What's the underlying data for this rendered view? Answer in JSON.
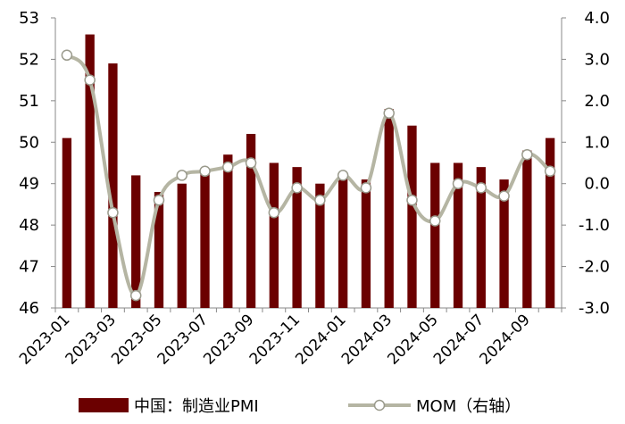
{
  "chart_data": {
    "type": "bar+line",
    "title": "",
    "xlabel": "",
    "x_tick_labels": [
      "2023-01",
      "2023-03",
      "2023-05",
      "2023-07",
      "2023-09",
      "2023-11",
      "2024-01",
      "2024-03",
      "2024-05",
      "2024-07",
      "2024-09"
    ],
    "categories": [
      "2023-01",
      "2023-02",
      "2023-03",
      "2023-04",
      "2023-05",
      "2023-06",
      "2023-07",
      "2023-08",
      "2023-09",
      "2023-10",
      "2023-11",
      "2023-12",
      "2024-01",
      "2024-02",
      "2024-03",
      "2024-04",
      "2024-05",
      "2024-06",
      "2024-07",
      "2024-08",
      "2024-09",
      "2024-10"
    ],
    "series": [
      {
        "name": "中国：制造业PMI",
        "type": "bar",
        "axis": "left",
        "color": "#6b0000",
        "values": [
          50.1,
          52.6,
          51.9,
          49.2,
          48.8,
          49.0,
          49.3,
          49.7,
          50.2,
          49.5,
          49.4,
          49.0,
          49.2,
          49.1,
          50.8,
          50.4,
          49.5,
          49.5,
          49.4,
          49.1,
          49.8,
          50.1
        ]
      },
      {
        "name": "MOM（右轴）",
        "type": "line",
        "axis": "right",
        "color": "#b5b5a3",
        "values": [
          3.1,
          2.5,
          -0.7,
          -2.7,
          -0.4,
          0.2,
          0.3,
          0.4,
          0.5,
          -0.7,
          -0.1,
          -0.4,
          0.2,
          -0.1,
          1.7,
          -0.4,
          -0.9,
          0.0,
          -0.1,
          -0.3,
          0.7,
          0.3
        ]
      }
    ],
    "y_left": {
      "min": 46,
      "max": 53,
      "ticks": [
        "46",
        "47",
        "48",
        "49",
        "50",
        "51",
        "52",
        "53"
      ]
    },
    "y_right": {
      "min": -3.0,
      "max": 4.0,
      "ticks": [
        "-3.0",
        "-2.0",
        "-1.0",
        "0.0",
        "1.0",
        "2.0",
        "3.0",
        "4.0"
      ]
    },
    "grid": false,
    "legend_position": "bottom"
  }
}
